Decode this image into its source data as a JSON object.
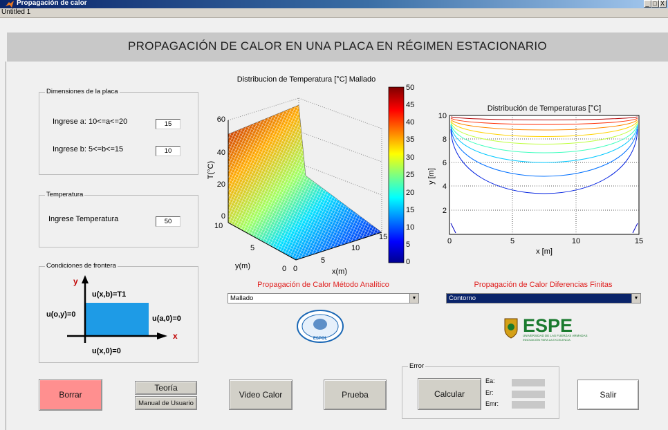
{
  "window": {
    "title": "Propagación de calor",
    "menu_text": "Untitled 1",
    "controls": [
      "_",
      "□",
      "X"
    ]
  },
  "heading": "PROPAGACIÓN DE CALOR EN UNA PLACA EN RÉGIMEN ESTACIONARIO",
  "dimensions_panel": {
    "title": "Dimensiones de la placa",
    "a_label": "Ingrese a: 10<=a<=20",
    "a_value": "15",
    "b_label": "Ingrese b: 5<=b<=15",
    "b_value": "10"
  },
  "temperature_panel": {
    "title": "Temperatura",
    "label": "Ingrese Temperatura",
    "value": "50"
  },
  "boundary_panel": {
    "title": "Condiciones de frontera",
    "y_axis": "y",
    "x_axis": "x",
    "top": "u(x,b)=T1",
    "left": "u(o,y)=0",
    "right": "u(a,0)=0",
    "bottom": "u(x,0)=0",
    "plate_color": "#1e9be6"
  },
  "surface_plot": {
    "title": "Distribucion de Temperatura [°C] Mallado",
    "zlabel": "T(°C)",
    "ylabel": "y(m)",
    "xlabel": "x(m)",
    "z_ticks": [
      "60",
      "40",
      "20",
      "0"
    ],
    "y_ticks": [
      "10",
      "5",
      "0"
    ],
    "x_ticks": [
      "0",
      "5",
      "10",
      "15"
    ],
    "colorbar_ticks": [
      "50",
      "45",
      "40",
      "35",
      "30",
      "25",
      "20",
      "15",
      "10",
      "5",
      "0"
    ]
  },
  "contour_plot": {
    "title": "Distribución de Temperaturas [°C]",
    "xlabel": "x [m]",
    "ylabel": "y [m]",
    "x_ticks": [
      "0",
      "5",
      "10",
      "15"
    ],
    "y_ticks": [
      "10",
      "8",
      "6",
      "4",
      "2"
    ]
  },
  "chart_data": [
    {
      "type": "heatmap",
      "title": "Distribucion de Temperatura [°C] Mallado",
      "xlabel": "x(m)",
      "ylabel": "y(m)",
      "zlabel": "T(°C)",
      "xlim": [
        0,
        15
      ],
      "ylim": [
        0,
        10
      ],
      "zlim": [
        0,
        60
      ],
      "clim": [
        0,
        50
      ]
    },
    {
      "type": "line",
      "title": "Distribución de Temperaturas [°C]",
      "xlabel": "x [m]",
      "ylabel": "y [m]",
      "xlim": [
        0,
        15
      ],
      "ylim": [
        0,
        10
      ],
      "grid": true,
      "contour_levels_approx": [
        5,
        10,
        15,
        20,
        25,
        30,
        35,
        40,
        45
      ]
    }
  ],
  "analytic": {
    "label": "Propagación de Calor Método Analítico",
    "selected": "Mallado"
  },
  "finite": {
    "label": "Propagación de Calor Diferencias Finitas",
    "selected": "Contorno"
  },
  "logos": {
    "espol_text": "ESPOL",
    "espe_text": "ESPE",
    "espe_sub1": "UNIVERSIDAD DE LAS FUERZAS ARMADAS",
    "espe_sub2": "INNOVACIÓN PARA LA EXCELENCIA"
  },
  "buttons": {
    "borrar": "Borrar",
    "teoria": "Teoría",
    "manual": "Manual de Usuario",
    "video": "Video Calor",
    "prueba": "Prueba",
    "calcular": "Calcular",
    "salir": "Salir"
  },
  "error_panel": {
    "title": "Error",
    "ea": "Ea:",
    "er": "Er:",
    "emr": "Emr:"
  },
  "colors": {
    "borrar_bg": "#ff8f8f",
    "dropdown_selected_bg": "#0a246a",
    "accent_red": "#e0201f"
  }
}
